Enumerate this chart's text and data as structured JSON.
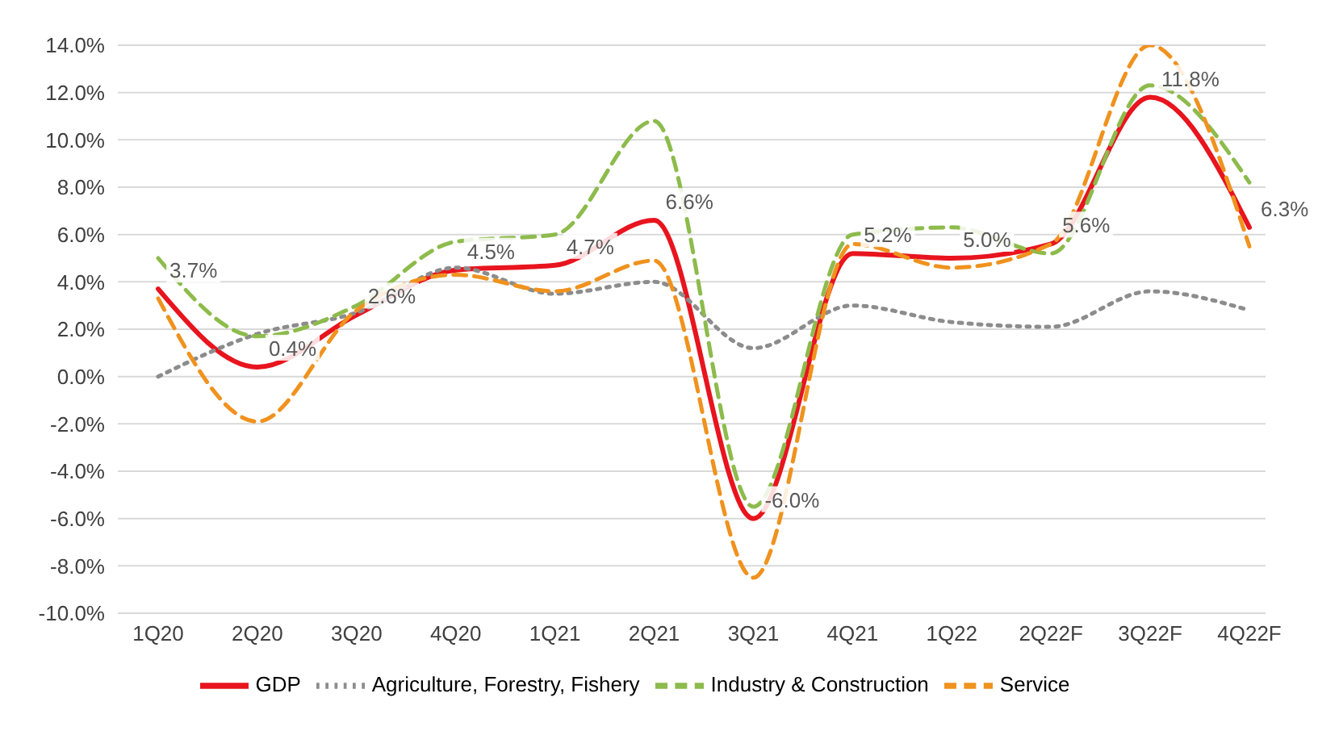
{
  "chart_data": {
    "type": "line",
    "categories": [
      "1Q20",
      "2Q20",
      "3Q20",
      "4Q20",
      "1Q21",
      "2Q21",
      "3Q21",
      "4Q21",
      "1Q22",
      "2Q22F",
      "3Q22F",
      "4Q22F"
    ],
    "series": [
      {
        "name": "GDP",
        "color": "#e8141e",
        "line_style": "solid",
        "values": [
          3.7,
          0.4,
          2.6,
          4.5,
          4.7,
          6.6,
          -6.0,
          5.2,
          5.0,
          5.6,
          11.8,
          6.3
        ],
        "value_labels": [
          "3.7%",
          "0.4%",
          "2.6%",
          "4.5%",
          "4.7%",
          "6.6%",
          "-6.0%",
          "5.2%",
          "5.0%",
          "5.6%",
          "11.8%",
          "6.3%"
        ]
      },
      {
        "name": "Agriculture, Forestry, Fishery",
        "color": "#8c8c8c",
        "line_style": "dotted",
        "values": [
          0.0,
          1.8,
          2.7,
          4.6,
          3.5,
          4.0,
          1.2,
          3.0,
          2.3,
          2.1,
          3.6,
          2.8
        ]
      },
      {
        "name": "Industry & Construction",
        "color": "#8dbb4c",
        "line_style": "dashed",
        "values": [
          5.0,
          1.7,
          3.0,
          5.7,
          6.0,
          10.8,
          -5.5,
          6.0,
          6.3,
          5.2,
          12.3,
          8.2
        ]
      },
      {
        "name": "Service",
        "color": "#f0921e",
        "line_style": "dashed",
        "values": [
          3.3,
          -1.9,
          2.8,
          4.3,
          3.6,
          4.9,
          -8.5,
          5.6,
          4.6,
          5.6,
          14.0,
          5.5
        ]
      }
    ],
    "ylim": [
      -10,
      14
    ],
    "yticks": [
      {
        "value": -10,
        "label": "-10.0%"
      },
      {
        "value": -8,
        "label": "-8.0%"
      },
      {
        "value": -6,
        "label": "-6.0%"
      },
      {
        "value": -4,
        "label": "-4.0%"
      },
      {
        "value": -2,
        "label": "-2.0%"
      },
      {
        "value": 0,
        "label": "0.0%"
      },
      {
        "value": 2,
        "label": "2.0%"
      },
      {
        "value": 4,
        "label": "4.0%"
      },
      {
        "value": 6,
        "label": "6.0%"
      },
      {
        "value": 8,
        "label": "8.0%"
      },
      {
        "value": 10,
        "label": "10.0%"
      },
      {
        "value": 12,
        "label": "12.0%"
      },
      {
        "value": 14,
        "label": "14.0%"
      }
    ],
    "grid": "y",
    "legend": "bottom",
    "marker": "none"
  }
}
